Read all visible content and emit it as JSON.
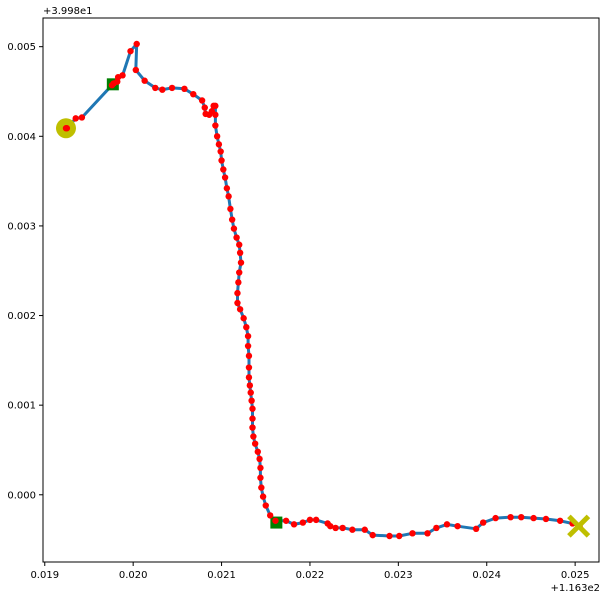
{
  "chart_data": {
    "type": "line",
    "title": "",
    "xlabel": "",
    "ylabel": "",
    "x_offset_label": "+1.163e2",
    "y_offset_label": "+3.998e1",
    "x_offset": 116.3,
    "y_offset": 39.98,
    "xlim": [
      0.01898,
      0.02527
    ],
    "ylim": [
      -0.00075,
      0.00532
    ],
    "x_ticks": [
      0.019,
      0.02,
      0.021,
      0.022,
      0.023,
      0.024,
      0.025
    ],
    "x_tick_labels": [
      "0.019",
      "0.020",
      "0.021",
      "0.022",
      "0.023",
      "0.024",
      "0.025"
    ],
    "y_ticks": [
      0.0,
      0.001,
      0.002,
      0.003,
      0.004,
      0.005
    ],
    "y_tick_labels": [
      "0.000",
      "0.001",
      "0.002",
      "0.003",
      "0.004",
      "0.005"
    ],
    "grid": false,
    "legend": "none",
    "colors": {
      "path_line": "#1f77b4",
      "points": "#ff0000",
      "start_marker": "#bfbf00",
      "end_marker": "#bfbf00",
      "waypoint_marker": "#008000"
    },
    "path": [
      [
        0.01925,
        0.00409
      ],
      [
        0.01935,
        0.0042
      ],
      [
        0.01942,
        0.00421
      ],
      [
        0.01976,
        0.00457
      ],
      [
        0.01978,
        0.00459
      ],
      [
        0.01982,
        0.00461
      ],
      [
        0.01983,
        0.00466
      ],
      [
        0.01988,
        0.00468
      ],
      [
        0.01997,
        0.00495
      ],
      [
        0.02004,
        0.00503
      ],
      [
        0.02003,
        0.00474
      ],
      [
        0.02013,
        0.00462
      ],
      [
        0.02025,
        0.00454
      ],
      [
        0.02033,
        0.00452
      ],
      [
        0.02044,
        0.00454
      ],
      [
        0.02058,
        0.00453
      ],
      [
        0.02068,
        0.00447
      ],
      [
        0.02078,
        0.0044
      ],
      [
        0.02081,
        0.00432
      ],
      [
        0.02082,
        0.00425
      ],
      [
        0.02086,
        0.00424
      ],
      [
        0.02089,
        0.00428
      ],
      [
        0.02091,
        0.00434
      ],
      [
        0.02093,
        0.00434
      ],
      [
        0.02093,
        0.00424
      ],
      [
        0.02093,
        0.00412
      ],
      [
        0.02095,
        0.004
      ],
      [
        0.02097,
        0.00391
      ],
      [
        0.02099,
        0.00383
      ],
      [
        0.021,
        0.00373
      ],
      [
        0.02102,
        0.00363
      ],
      [
        0.02104,
        0.00354
      ],
      [
        0.02106,
        0.00342
      ],
      [
        0.02108,
        0.00333
      ],
      [
        0.0211,
        0.00319
      ],
      [
        0.02112,
        0.00307
      ],
      [
        0.02114,
        0.00297
      ],
      [
        0.02117,
        0.00287
      ],
      [
        0.0212,
        0.00279
      ],
      [
        0.02121,
        0.0027
      ],
      [
        0.02122,
        0.00259
      ],
      [
        0.0212,
        0.00248
      ],
      [
        0.02119,
        0.00237
      ],
      [
        0.02118,
        0.00225
      ],
      [
        0.02118,
        0.00214
      ],
      [
        0.02121,
        0.00207
      ],
      [
        0.02125,
        0.00197
      ],
      [
        0.02128,
        0.00187
      ],
      [
        0.0213,
        0.00177
      ],
      [
        0.0213,
        0.00166
      ],
      [
        0.02131,
        0.00155
      ],
      [
        0.02131,
        0.00142
      ],
      [
        0.02131,
        0.00131
      ],
      [
        0.02132,
        0.00122
      ],
      [
        0.02133,
        0.00114
      ],
      [
        0.02134,
        0.00105
      ],
      [
        0.02135,
        0.00096
      ],
      [
        0.02135,
        0.00085
      ],
      [
        0.02135,
        0.00075
      ],
      [
        0.02136,
        0.00065
      ],
      [
        0.02138,
        0.00057
      ],
      [
        0.02141,
        0.00048
      ],
      [
        0.02143,
        0.0004
      ],
      [
        0.02144,
        0.0003
      ],
      [
        0.02144,
        0.00019
      ],
      [
        0.02145,
        8e-05
      ],
      [
        0.02147,
        -2e-05
      ],
      [
        0.0215,
        -0.00012
      ],
      [
        0.02155,
        -0.00023
      ],
      [
        0.02161,
        -0.00029
      ],
      [
        0.02173,
        -0.00029
      ],
      [
        0.02182,
        -0.00033
      ],
      [
        0.02192,
        -0.00031
      ],
      [
        0.022,
        -0.00028
      ],
      [
        0.02207,
        -0.00028
      ],
      [
        0.0222,
        -0.00032
      ],
      [
        0.02223,
        -0.00035
      ],
      [
        0.02229,
        -0.00037
      ],
      [
        0.02237,
        -0.00037
      ],
      [
        0.02248,
        -0.00039
      ],
      [
        0.02262,
        -0.00039
      ],
      [
        0.02271,
        -0.00045
      ],
      [
        0.0229,
        -0.00046
      ],
      [
        0.02301,
        -0.00046
      ],
      [
        0.02316,
        -0.00043
      ],
      [
        0.02333,
        -0.00043
      ],
      [
        0.02343,
        -0.00037
      ],
      [
        0.02355,
        -0.00033
      ],
      [
        0.02367,
        -0.00035
      ],
      [
        0.02388,
        -0.00038
      ],
      [
        0.02396,
        -0.00031
      ],
      [
        0.0241,
        -0.00026
      ],
      [
        0.02427,
        -0.00025
      ],
      [
        0.02439,
        -0.00025
      ],
      [
        0.02453,
        -0.00026
      ],
      [
        0.02467,
        -0.00027
      ],
      [
        0.02483,
        -0.00029
      ],
      [
        0.02497,
        -0.00032
      ],
      [
        0.02505,
        -0.00035
      ]
    ],
    "start_point": [
      0.01924,
      0.00409
    ],
    "end_point": [
      0.02504,
      -0.00035
    ],
    "waypoints": [
      [
        0.01977,
        0.00458
      ],
      [
        0.02162,
        -0.00031
      ]
    ]
  }
}
